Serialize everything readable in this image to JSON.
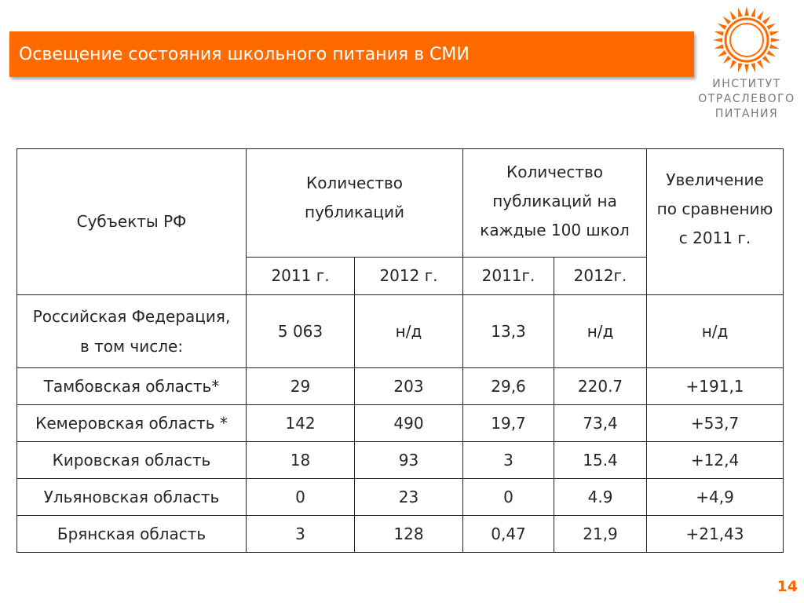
{
  "slide": {
    "title": "Освещение состояния школьного питания в СМИ",
    "page_number": "14",
    "accent_color": "#ff6a00"
  },
  "logo": {
    "icon": "sun-ring-icon",
    "lines": [
      "ИНСТИТУТ",
      "ОТРАСЛЕВОГО",
      "ПИТАНИЯ"
    ]
  },
  "table": {
    "headers": {
      "subject": "Субъекты РФ",
      "count_line1": "Количество",
      "count_line2": "публикаций",
      "per100_line1": "Количество",
      "per100_line2": "публикаций на",
      "per100_line3": "каждые 100 школ",
      "increase_line1": "Увеличение",
      "increase_line2": "по сравнению",
      "increase_line3": "с 2011 г.",
      "count_2011": "2011 г.",
      "count_2012": "2012 г.",
      "per100_2011": "2011г.",
      "per100_2012": "2012г."
    },
    "rf_row": {
      "name_line1": "Российская Федерация,",
      "name_line2": "в том числе:",
      "count_2011": "5 063",
      "count_2012": "н/д",
      "per100_2011": "13,3",
      "per100_2012": "н/д",
      "increase": "н/д"
    },
    "rows": [
      {
        "name": "Тамбовская область*",
        "count_2011": "29",
        "count_2012": "203",
        "per100_2011": "29,6",
        "per100_2012": "220.7",
        "increase": "+191,1"
      },
      {
        "name": "Кемеровская область *",
        "count_2011": "142",
        "count_2012": "490",
        "per100_2011": "19,7",
        "per100_2012": "73,4",
        "increase": "+53,7"
      },
      {
        "name": "Кировская область",
        "count_2011": "18",
        "count_2012": "93",
        "per100_2011": "3",
        "per100_2012": "15.4",
        "increase": "+12,4"
      },
      {
        "name": "Ульяновская область",
        "count_2011": "0",
        "count_2012": "23",
        "per100_2011": "0",
        "per100_2012": "4.9",
        "increase": "+4,9"
      },
      {
        "name": "Брянская область",
        "count_2011": "3",
        "count_2012": "128",
        "per100_2011": "0,47",
        "per100_2012": "21,9",
        "increase": "+21,43"
      }
    ]
  }
}
